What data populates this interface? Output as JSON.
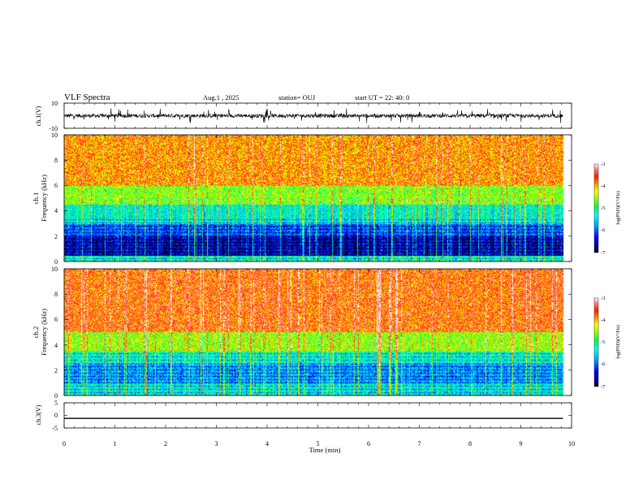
{
  "header": {
    "title": "VLF Spectra",
    "date": "Aug.1  , 2025",
    "station": "station= OUJ",
    "start_ut": "start  UT  =   22: 40: 0"
  },
  "chart_data": [
    {
      "type": "line",
      "name": "ch1-waveform",
      "ylabel": "ch.1(V)",
      "ylim": [
        -10,
        10
      ],
      "yticks": [
        "10",
        "-10"
      ],
      "xlim": [
        0,
        10
      ],
      "trace_color": "#000000",
      "baseline": 0,
      "typical_amplitude": 1.5,
      "spike_amplitude": 6,
      "data_end": 9.83
    },
    {
      "type": "heatmap",
      "name": "ch1-spectrogram",
      "ylabel": "ch.1\nFrequency  (kHz)",
      "ylim": [
        0,
        10
      ],
      "yticks": [
        "0",
        "2",
        "4",
        "6",
        "8",
        "10"
      ],
      "xlim": [
        0,
        10
      ],
      "data_end": 9.83,
      "colorbar": {
        "label": "log(PSD)(V²/Hz)",
        "range": [
          -7,
          -3
        ],
        "ticks": [
          "-3",
          "-4",
          "-5",
          "-6",
          "-7"
        ]
      },
      "band_levels": [
        {
          "freq_khz": [
            0,
            0.5
          ],
          "log_psd": -5.2
        },
        {
          "freq_khz": [
            0.5,
            2.0
          ],
          "log_psd": -6.5
        },
        {
          "freq_khz": [
            2.0,
            3.0
          ],
          "log_psd": -6.0
        },
        {
          "freq_khz": [
            3.0,
            4.5
          ],
          "log_psd": -5.3
        },
        {
          "freq_khz": [
            4.5,
            6.0
          ],
          "log_psd": -4.6
        },
        {
          "freq_khz": [
            6.0,
            10.0
          ],
          "log_psd": -3.9
        }
      ]
    },
    {
      "type": "heatmap",
      "name": "ch2-spectrogram",
      "ylabel": "ch.2\nFrequency  (kHz)",
      "ylim": [
        0,
        10
      ],
      "yticks": [
        "0",
        "2",
        "4",
        "6",
        "8",
        "10"
      ],
      "xlim": [
        0,
        10
      ],
      "data_end": 9.83,
      "colorbar": {
        "label": "log(PSD)(V²/Hz)",
        "range": [
          -7,
          -3
        ],
        "ticks": [
          "-3",
          "-4",
          "-5",
          "-6",
          "-7"
        ]
      },
      "band_levels": [
        {
          "freq_khz": [
            0,
            1.0
          ],
          "log_psd": -5.3
        },
        {
          "freq_khz": [
            1.0,
            2.5
          ],
          "log_psd": -5.7
        },
        {
          "freq_khz": [
            2.5,
            3.5
          ],
          "log_psd": -5.2
        },
        {
          "freq_khz": [
            3.5,
            5.0
          ],
          "log_psd": -4.5
        },
        {
          "freq_khz": [
            5.0,
            10.0
          ],
          "log_psd": -3.7
        }
      ]
    },
    {
      "type": "line",
      "name": "ch3-trace",
      "ylabel": "ch.3(V)",
      "ylim": [
        -5,
        5
      ],
      "yticks": [
        "5",
        "0",
        "-5"
      ],
      "xlim": [
        0,
        10
      ],
      "trace_color": "#000000",
      "constant_value": -1.2,
      "data_end": 9.83,
      "xlabel": "Time  (min)",
      "xticks": [
        "0",
        "1",
        "2",
        "3",
        "4",
        "5",
        "6",
        "7",
        "8",
        "9",
        "10"
      ]
    }
  ]
}
